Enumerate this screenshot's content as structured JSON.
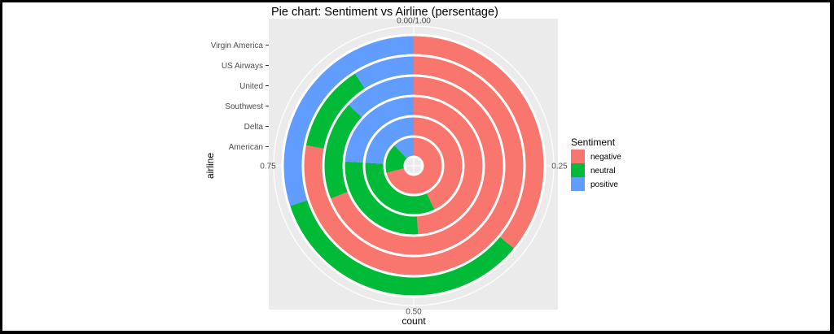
{
  "chart_data": {
    "type": "pie",
    "title": "Pie chart: Sentiment vs Airline (persentage)",
    "xlabel": "count",
    "ylabel": "airline",
    "categories": [
      "American",
      "Delta",
      "Southwest",
      "United",
      "US Airways",
      "Virgin America"
    ],
    "angle_ticks": [
      "0.00/1.00",
      "0.25",
      "0.50",
      "0.75"
    ],
    "legend": {
      "title": "Sentiment",
      "placement": "right"
    },
    "series": [
      {
        "name": "negative",
        "color": "#F8766D",
        "values": [
          0.71,
          0.43,
          0.49,
          0.69,
          0.78,
          0.36
        ]
      },
      {
        "name": "neutral",
        "color": "#00BA38",
        "values": [
          0.17,
          0.33,
          0.27,
          0.18,
          0.13,
          0.34
        ]
      },
      {
        "name": "positive",
        "color": "#619CFF",
        "values": [
          0.12,
          0.24,
          0.24,
          0.13,
          0.09,
          0.3
        ]
      }
    ],
    "grid": true
  }
}
